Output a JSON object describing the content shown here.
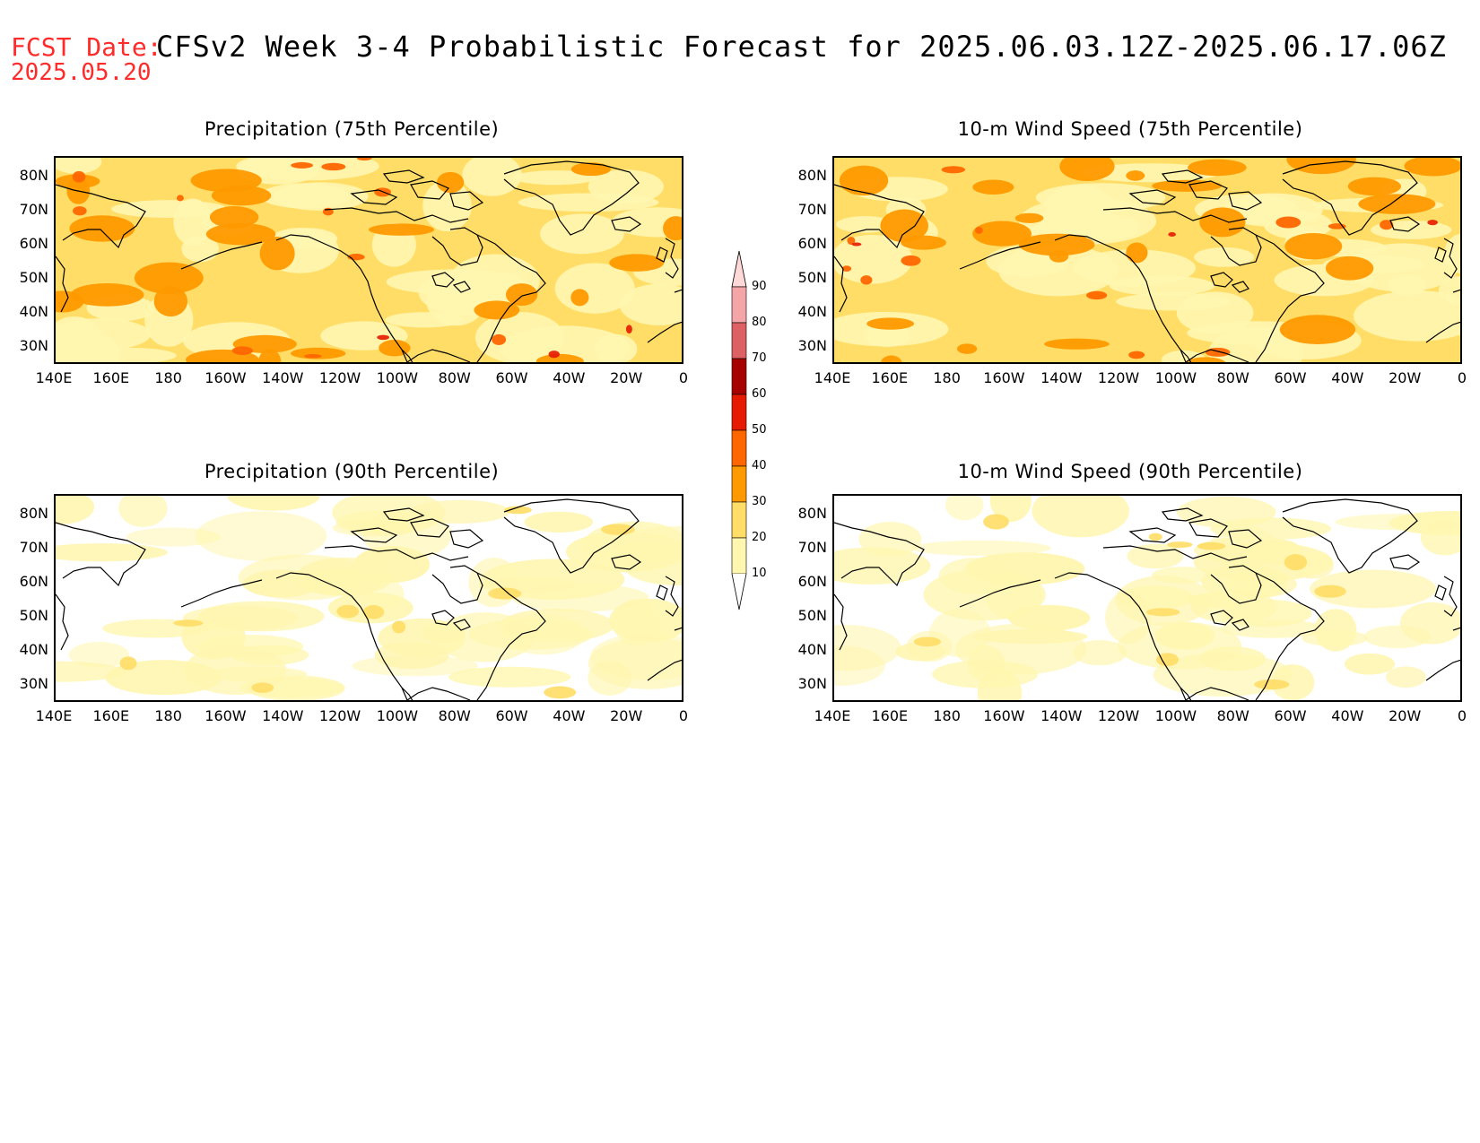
{
  "header": {
    "fcst_label": "FCST Date:",
    "fcst_date": "2025.05.20",
    "title": "CFSv2 Week 3-4 Probabilistic Forecast for 2025.06.03.12Z-2025.06.17.06Z"
  },
  "panels": [
    {
      "id": "p75",
      "title": "Precipitation (75th Percentile)",
      "intensity": 0.75
    },
    {
      "id": "w75",
      "title": "10-m Wind Speed (75th Percentile)",
      "intensity": 0.7
    },
    {
      "id": "p90",
      "title": "Precipitation (90th Percentile)",
      "intensity": 0.2
    },
    {
      "id": "w90",
      "title": "10-m Wind Speed (90th Percentile)",
      "intensity": 0.15
    }
  ],
  "axes": {
    "y_labels": [
      "80N",
      "70N",
      "60N",
      "50N",
      "40N",
      "30N"
    ],
    "x_labels": [
      "140E",
      "160E",
      "180",
      "160W",
      "140W",
      "120W",
      "100W",
      "80W",
      "60W",
      "40W",
      "20W",
      "0"
    ]
  },
  "colorbar": {
    "levels": [
      "90",
      "80",
      "70",
      "60",
      "50",
      "40",
      "30",
      "20",
      "10"
    ],
    "colors": [
      "#ffd8d8",
      "#f3a5a8",
      "#dd6065",
      "#a60000",
      "#e61a00",
      "#ff6600",
      "#ff9900",
      "#ffdd66",
      "#fff6b0"
    ]
  }
}
